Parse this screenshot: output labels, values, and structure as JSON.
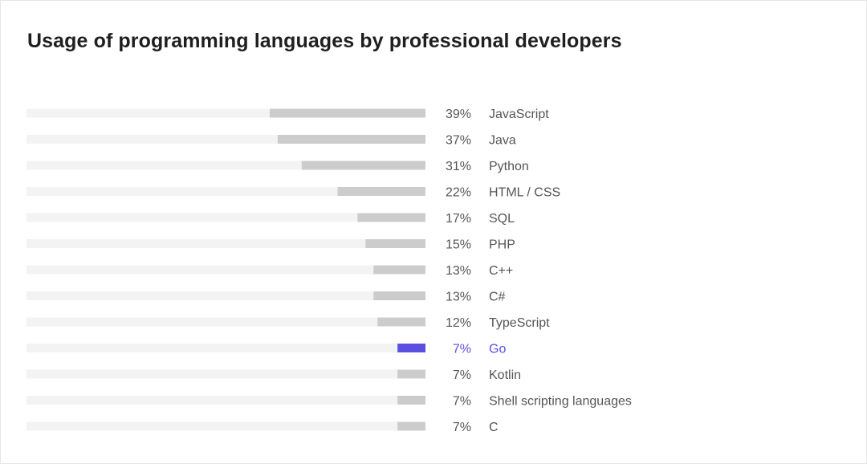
{
  "chart_data": {
    "type": "bar",
    "orientation": "horizontal",
    "title": "Usage of programming languages by professional developers",
    "xlabel": "",
    "ylabel": "",
    "xlim": [
      0,
      100
    ],
    "unit": "%",
    "highlight": "Go",
    "categories": [
      "JavaScript",
      "Java",
      "Python",
      "HTML / CSS",
      "SQL",
      "PHP",
      "C++",
      "C#",
      "TypeScript",
      "Go",
      "Kotlin",
      "Shell scripting languages",
      "C"
    ],
    "values": [
      39,
      37,
      31,
      22,
      17,
      15,
      13,
      13,
      12,
      7,
      7,
      7,
      7
    ],
    "value_labels": [
      "39%",
      "37%",
      "31%",
      "22%",
      "17%",
      "15%",
      "13%",
      "13%",
      "12%",
      "7%",
      "7%",
      "7%",
      "7%"
    ]
  },
  "colors": {
    "track": "#f3f3f3",
    "bar": "#cccccc",
    "highlight_bar": "#5b4fe0",
    "label_text": "#555555",
    "highlight_text": "#5b4fe0",
    "title_text": "#1f1f1f"
  }
}
